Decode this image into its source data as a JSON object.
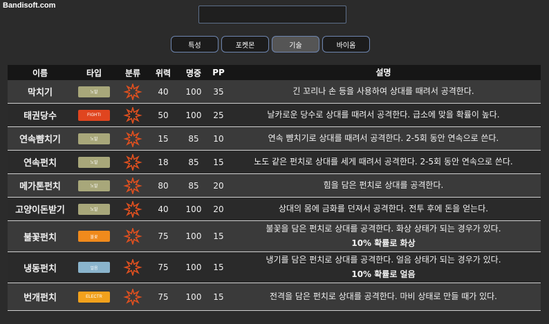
{
  "watermark": "Bandisoft.com",
  "search": {
    "value": ""
  },
  "tabs": [
    {
      "label": "특성",
      "active": false
    },
    {
      "label": "포켓몬",
      "active": false
    },
    {
      "label": "기술",
      "active": true
    },
    {
      "label": "바이옴",
      "active": false
    }
  ],
  "headers": {
    "name": "이름",
    "type": "타입",
    "category": "분류",
    "power": "위력",
    "accuracy": "명중",
    "pp": "PP",
    "description": "설명"
  },
  "colors": {
    "normal": "#a8a77a",
    "fighting": "#e0451f",
    "fire": "#f08a1c",
    "ice": "#8ab4cc",
    "electric": "#f2a11c",
    "physical_icon": "#e0501f"
  },
  "moves": [
    {
      "name": "막치기",
      "type_label": "노말",
      "type_color": "#a8a77a",
      "category_icon": "physical-icon",
      "power": "40",
      "accuracy": "100",
      "pp": "35",
      "desc1": "긴 꼬리나 손 등을 사용하여 상대를 때려서 공격한다.",
      "desc2": ""
    },
    {
      "name": "태권당수",
      "type_label": "FIGHTI",
      "type_color": "#e0451f",
      "category_icon": "physical-icon",
      "power": "50",
      "accuracy": "100",
      "pp": "25",
      "desc1": "날카로운 당수로 상대를 때려서 공격한다. 급소에 맞을 확률이 높다.",
      "desc2": ""
    },
    {
      "name": "연속뺨치기",
      "type_label": "노말",
      "type_color": "#a8a77a",
      "category_icon": "physical-icon",
      "power": "15",
      "accuracy": "85",
      "pp": "10",
      "desc1": "연속 뺨치기로 상대를 때려서 공격한다. 2-5회 동안 연속으로 쓴다.",
      "desc2": ""
    },
    {
      "name": "연속펀치",
      "type_label": "노말",
      "type_color": "#a8a77a",
      "category_icon": "physical-icon",
      "power": "18",
      "accuracy": "85",
      "pp": "15",
      "desc1": "노도 같은 펀치로 상대를 세게 때려서 공격한다. 2-5회 동안 연속으로 쓴다.",
      "desc2": ""
    },
    {
      "name": "메가톤펀치",
      "type_label": "노말",
      "type_color": "#a8a77a",
      "category_icon": "physical-icon",
      "power": "80",
      "accuracy": "85",
      "pp": "20",
      "desc1": "힘을 담은 펀치로 상대를 공격한다.",
      "desc2": ""
    },
    {
      "name": "고양이돈받기",
      "type_label": "노말",
      "type_color": "#a8a77a",
      "category_icon": "physical-icon",
      "power": "40",
      "accuracy": "100",
      "pp": "20",
      "desc1": "상대의 몸에 금화를 던져서 공격한다. 전투 후에 돈을 얻는다.",
      "desc2": ""
    },
    {
      "name": "불꽃펀치",
      "type_label": "불꽃",
      "type_color": "#f08a1c",
      "category_icon": "physical-icon",
      "power": "75",
      "accuracy": "100",
      "pp": "15",
      "desc1": "불꽃을 담은 펀치로 상대를 공격한다. 화상 상태가 되는 경우가 있다.",
      "desc2": "10% 확률로 화상"
    },
    {
      "name": "냉동펀치",
      "type_label": "얼음",
      "type_color": "#8ab4cc",
      "category_icon": "physical-icon",
      "power": "75",
      "accuracy": "100",
      "pp": "15",
      "desc1": "냉기를 담은 펀치로 상대를 공격한다. 얼음 상태가 되는 경우가 있다.",
      "desc2": "10% 확률로 얼음"
    },
    {
      "name": "번개펀치",
      "type_label": "ELECTR",
      "type_color": "#f2a11c",
      "category_icon": "physical-icon",
      "power": "75",
      "accuracy": "100",
      "pp": "15",
      "desc1": "전격을 담은 펀치로 상대를 공격한다. 마비 상태로 만들 때가 있다.",
      "desc2": ""
    }
  ]
}
